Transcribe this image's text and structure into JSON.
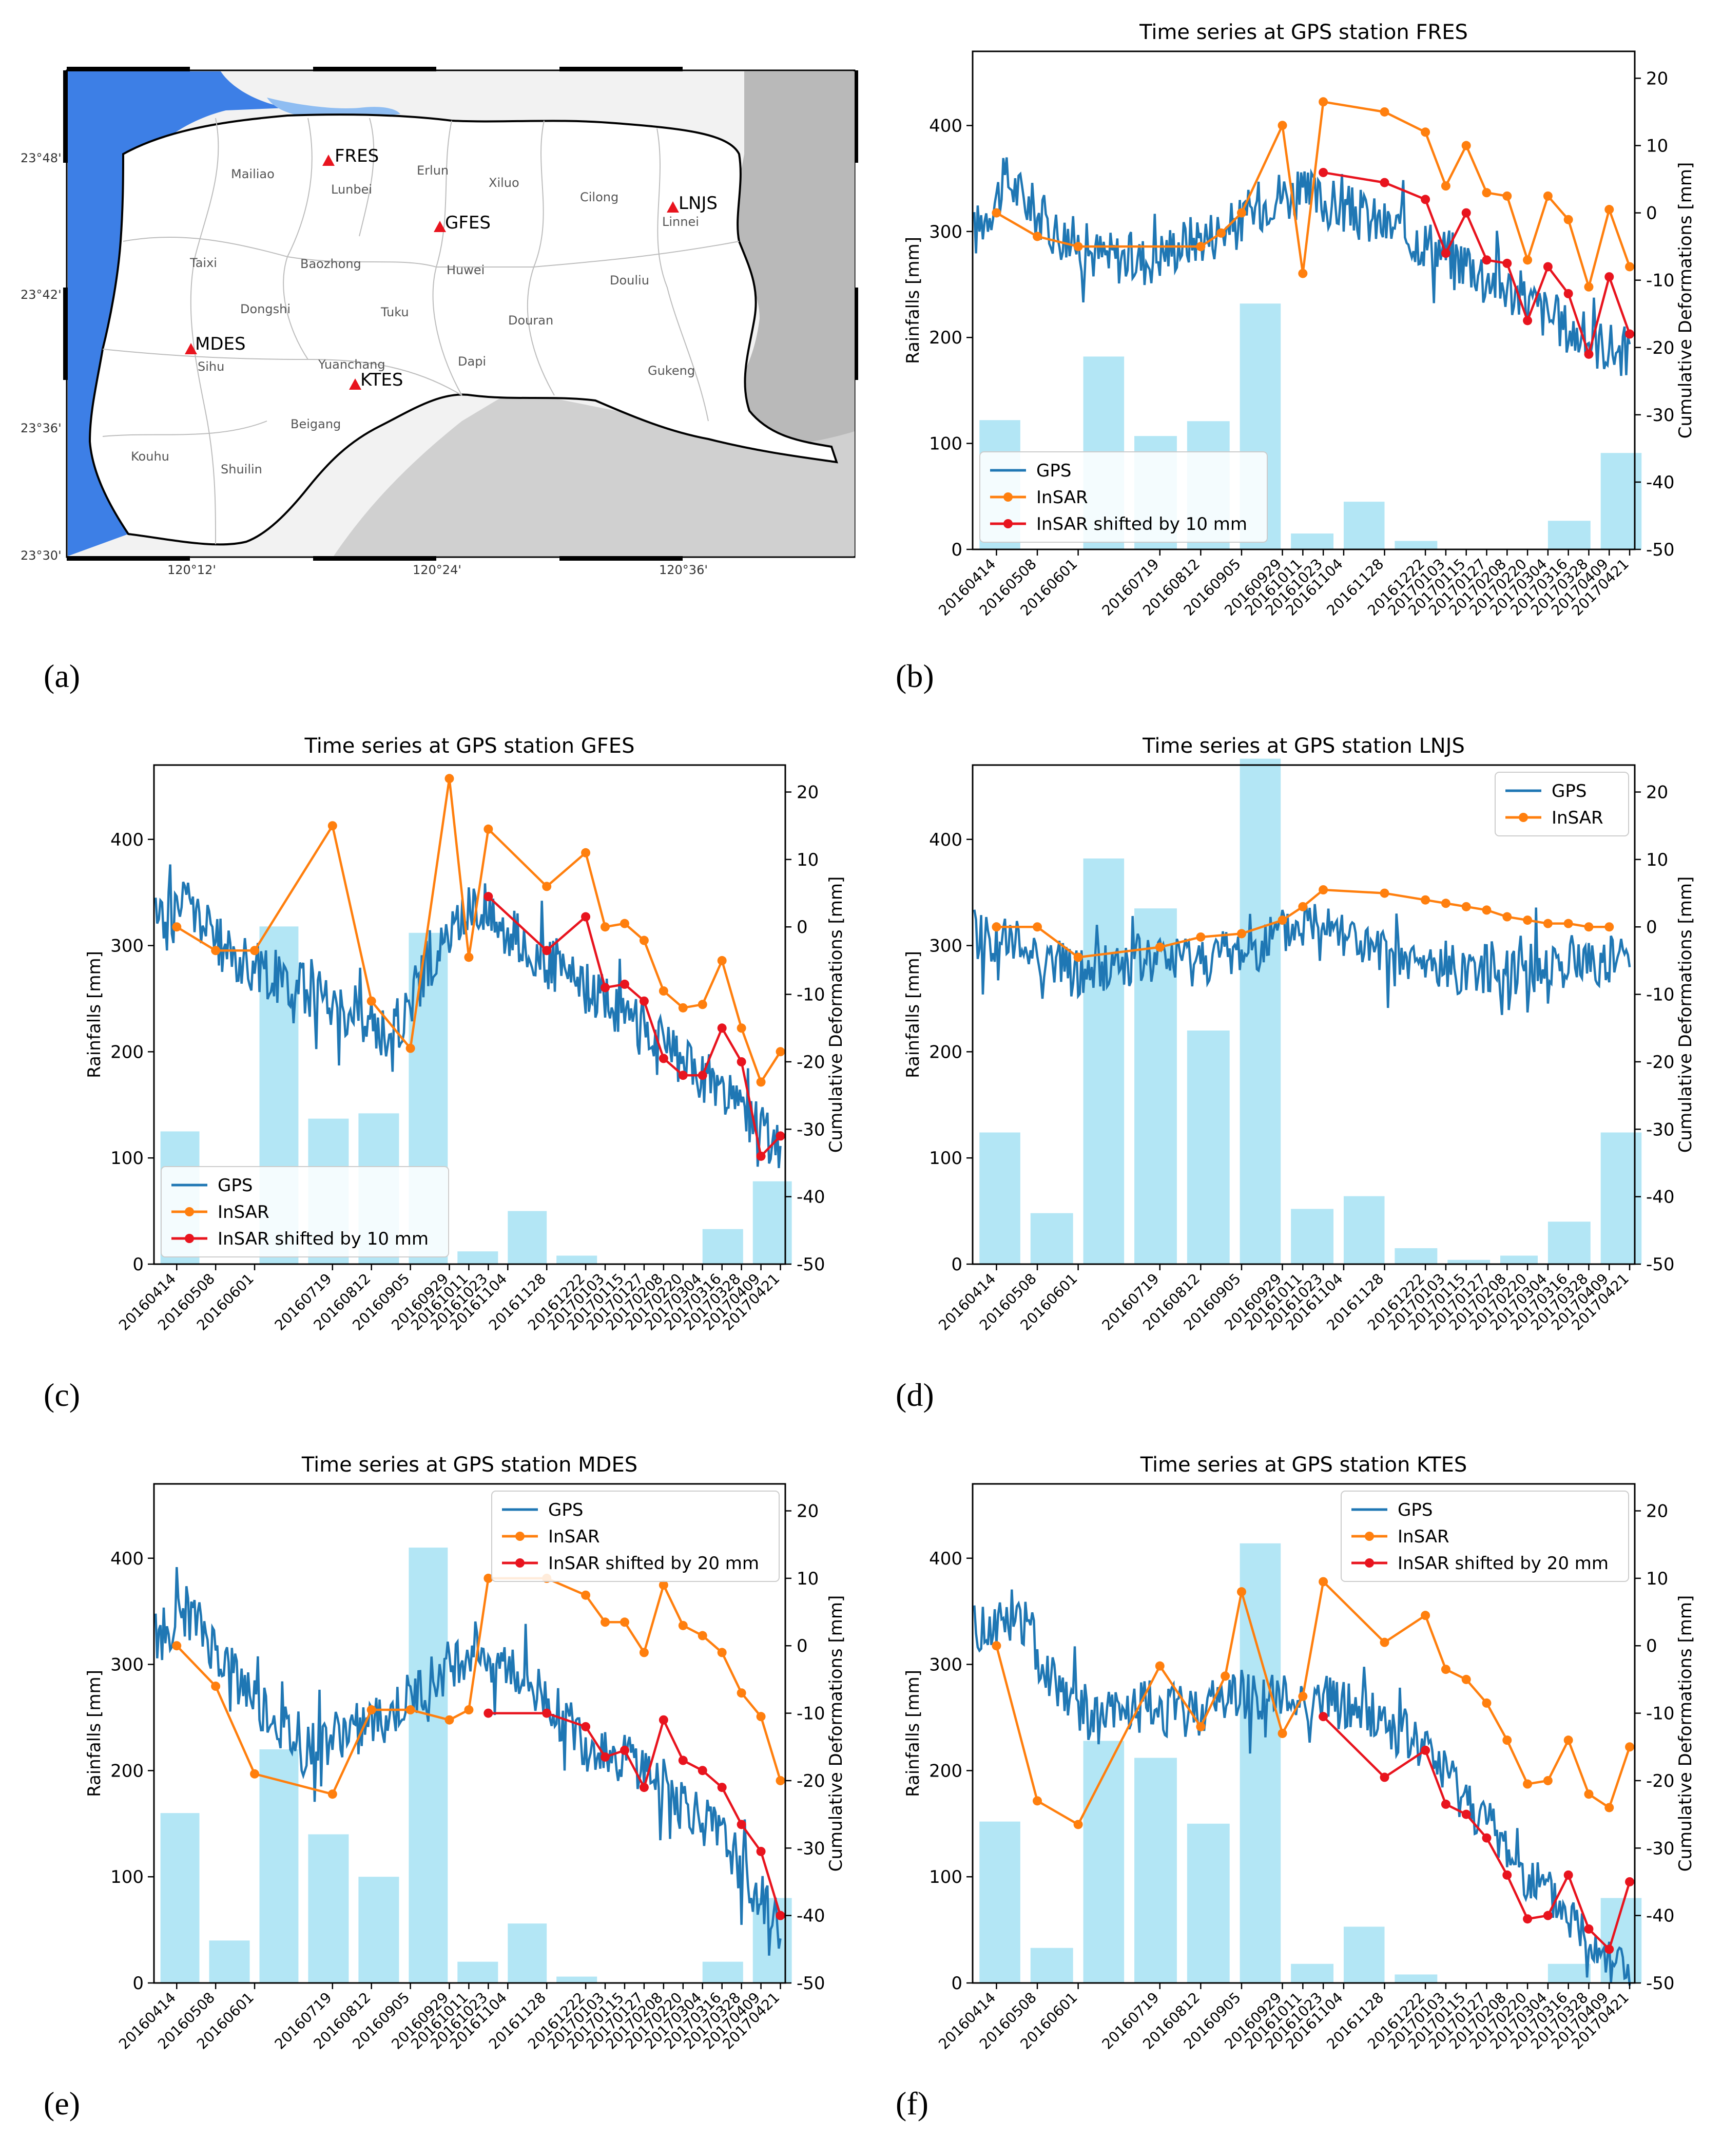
{
  "panel_letters": [
    "(a)",
    "(b)",
    "(c)",
    "(d)",
    "(e)",
    "(f)"
  ],
  "map": {
    "lat_ticks": [
      "23°48'",
      "23°42'",
      "23°36'",
      "23°30'"
    ],
    "lon_ticks": [
      "120°12'",
      "120°24'",
      "120°36'"
    ],
    "townships": [
      "Mailiao",
      "Lunbei",
      "Erlun",
      "Xiluo",
      "Cilong",
      "Linnei",
      "Taixi",
      "Baozhong",
      "Huwei",
      "Douliu",
      "Dongshi",
      "Tuku",
      "Douran",
      "Sihu",
      "Yuanchang",
      "Dapi",
      "Gukeng",
      "Beigang",
      "Kouhu",
      "Shuilin"
    ],
    "stations": [
      "FRES",
      "GFES",
      "LNJS",
      "MDES",
      "KTES"
    ],
    "colors": {
      "sea": "#3d7fe6",
      "land": "#f2f2f2",
      "relief": "#a8a8a8",
      "station": "#e8141e"
    }
  },
  "chart_data": [
    {
      "type": "bar+line",
      "title": "Time series at GPS station FRES",
      "ylabel": "Rainfalls [mm]",
      "y2label": "Cumulative Deformations [mm]",
      "ylim": [
        0,
        470
      ],
      "y2lim": [
        -50,
        24
      ],
      "yticks": [
        0,
        100,
        200,
        300,
        400
      ],
      "y2ticks": [
        -50,
        -40,
        -30,
        -20,
        -10,
        0,
        10,
        20
      ],
      "x_range": [
        "2016-03-31",
        "2017-04-24"
      ],
      "dates": [
        "20160414",
        "20160508",
        "20160601",
        "20160719",
        "20160812",
        "20160905",
        "20160929",
        "20161011",
        "20161023",
        "20161104",
        "20161128",
        "20161222",
        "20170103",
        "20170115",
        "20170127",
        "20170208",
        "20170220",
        "20170304",
        "20170316",
        "20170328",
        "20170409",
        "20170421"
      ],
      "rain_months": [
        "2016-04",
        "2016-05",
        "2016-06",
        "2016-07",
        "2016-08",
        "2016-09",
        "2016-10",
        "2016-11",
        "2016-12",
        "2017-01",
        "2017-02",
        "2017-03",
        "2017-04"
      ],
      "rain": [
        122,
        0,
        182,
        107,
        121,
        232,
        15,
        45,
        8,
        0,
        0,
        27,
        91
      ],
      "legend": [
        "GPS",
        "InSAR",
        "InSAR shifted by 10 mm"
      ],
      "legend_loc": "lower-left",
      "gps_anchors": [
        [
          "2016-04-01",
          -3
        ],
        [
          "2016-04-20",
          5
        ],
        [
          "2016-05-15",
          -2
        ],
        [
          "2016-06-10",
          -6
        ],
        [
          "2016-07-10",
          -7
        ],
        [
          "2016-08-05",
          -4
        ],
        [
          "2016-09-01",
          -2
        ],
        [
          "2016-09-25",
          3
        ],
        [
          "2016-10-20",
          2
        ],
        [
          "2016-11-20",
          -1
        ],
        [
          "2016-12-20",
          -4
        ],
        [
          "2017-01-20",
          -8
        ],
        [
          "2017-02-20",
          -13
        ],
        [
          "2017-03-20",
          -18
        ],
        [
          "2017-04-21",
          -21
        ]
      ],
      "gps_noise": 4,
      "insar": [
        0,
        -3.5,
        -5,
        -5,
        -3,
        0,
        13,
        -9,
        16.5,
        15,
        12,
        4,
        10,
        3,
        2.5,
        -7,
        2.5,
        -1,
        -11,
        0.5,
        -8
      ],
      "insar_dates_idx": [
        0,
        1,
        2,
        4,
        4.5,
        5,
        6,
        7,
        8,
        10,
        11,
        12,
        13,
        14,
        15,
        16,
        17,
        18,
        19,
        20,
        21
      ],
      "shifted": [
        6,
        4.5,
        2,
        -6,
        0,
        -7,
        -7.5,
        -16,
        -8,
        -12,
        -21,
        -9.5,
        -18
      ],
      "shifted_from_idx": 8
    },
    {
      "type": "bar+line",
      "title": "Time series at GPS station GFES",
      "ylabel": "Rainfalls [mm]",
      "y2label": "Cumulative Deformations [mm]",
      "ylim": [
        0,
        470
      ],
      "y2lim": [
        -50,
        24
      ],
      "yticks": [
        0,
        100,
        200,
        300,
        400
      ],
      "y2ticks": [
        -50,
        -40,
        -30,
        -20,
        -10,
        0,
        10,
        20
      ],
      "x_range": [
        "2016-03-31",
        "2017-04-24"
      ],
      "dates": [
        "20160414",
        "20160508",
        "20160601",
        "20160719",
        "20160812",
        "20160905",
        "20160929",
        "20161011",
        "20161023",
        "20161104",
        "20161128",
        "20161222",
        "20170103",
        "20170115",
        "20170127",
        "20170208",
        "20170220",
        "20170304",
        "20170316",
        "20170328",
        "20170409",
        "20170421"
      ],
      "rain_months": [
        "2016-04",
        "2016-05",
        "2016-06",
        "2016-07",
        "2016-08",
        "2016-09",
        "2016-10",
        "2016-11",
        "2016-12",
        "2017-01",
        "2017-02",
        "2017-03",
        "2017-04"
      ],
      "rain": [
        125,
        0,
        318,
        137,
        142,
        312,
        12,
        50,
        8,
        0,
        0,
        33,
        78
      ],
      "legend": [
        "GPS",
        "InSAR",
        "InSAR shifted by 10 mm"
      ],
      "legend_loc": "lower-left",
      "gps_anchors": [
        [
          "2016-04-01",
          1
        ],
        [
          "2016-04-20",
          4
        ],
        [
          "2016-05-15",
          -4
        ],
        [
          "2016-06-10",
          -7
        ],
        [
          "2016-07-10",
          -10
        ],
        [
          "2016-08-05",
          -14
        ],
        [
          "2016-08-25",
          -16
        ],
        [
          "2016-09-15",
          -6
        ],
        [
          "2016-10-15",
          4
        ],
        [
          "2016-11-20",
          -4
        ],
        [
          "2016-12-20",
          -9
        ],
        [
          "2017-01-20",
          -13
        ],
        [
          "2017-02-20",
          -20
        ],
        [
          "2017-03-20",
          -25
        ],
        [
          "2017-04-21",
          -33
        ]
      ],
      "gps_noise": 4,
      "insar": [
        0,
        -3.5,
        -3.5,
        15,
        -11,
        -18,
        22,
        -4.5,
        14.5,
        6,
        11,
        0,
        0.5,
        -2,
        -9.5,
        -12,
        -11.5,
        -5,
        -15,
        -23,
        -18.5
      ],
      "insar_dates_idx": [
        0,
        1,
        2,
        3,
        4,
        5,
        6,
        7,
        8,
        10,
        11,
        12,
        13,
        14,
        15,
        16,
        17,
        18,
        19,
        20,
        21
      ],
      "shifted": [
        4.5,
        -3.5,
        1.5,
        -9,
        -8.5,
        -11,
        -19.5,
        -22,
        -22,
        -15,
        -20,
        -34,
        -31
      ],
      "shifted_from_idx": 8
    },
    {
      "type": "bar+line",
      "title": "Time series at GPS station LNJS",
      "ylabel": "Rainfalls [mm]",
      "y2label": "Cumulative Deformations [mm]",
      "ylim": [
        0,
        470
      ],
      "y2lim": [
        -50,
        24
      ],
      "yticks": [
        0,
        100,
        200,
        300,
        400
      ],
      "y2ticks": [
        -50,
        -40,
        -30,
        -20,
        -10,
        0,
        10,
        20
      ],
      "x_range": [
        "2016-03-31",
        "2017-04-24"
      ],
      "dates": [
        "20160414",
        "20160508",
        "20160601",
        "20160719",
        "20160812",
        "20160905",
        "20160929",
        "20161011",
        "20161023",
        "20161104",
        "20161128",
        "20161222",
        "20170103",
        "20170115",
        "20170127",
        "20170208",
        "20170220",
        "20170304",
        "20170316",
        "20170328",
        "20170409",
        "20170421"
      ],
      "rain_months": [
        "2016-04",
        "2016-05",
        "2016-06",
        "2016-07",
        "2016-08",
        "2016-09",
        "2016-10",
        "2016-11",
        "2016-12",
        "2017-01",
        "2017-02",
        "2017-03",
        "2017-04"
      ],
      "rain": [
        124,
        48,
        382,
        335,
        220,
        476,
        52,
        64,
        15,
        4,
        8,
        40,
        124
      ],
      "legend": [
        "GPS",
        "InSAR"
      ],
      "legend_loc": "upper-right",
      "gps_anchors": [
        [
          "2016-04-01",
          -1
        ],
        [
          "2016-05-01",
          -3
        ],
        [
          "2016-06-01",
          -7
        ],
        [
          "2016-07-01",
          -5
        ],
        [
          "2016-08-01",
          -5
        ],
        [
          "2016-09-01",
          -4
        ],
        [
          "2016-10-01",
          -1
        ],
        [
          "2016-10-25",
          2
        ],
        [
          "2016-11-20",
          -4
        ],
        [
          "2016-12-20",
          -6
        ],
        [
          "2017-01-20",
          -6
        ],
        [
          "2017-02-20",
          -6
        ],
        [
          "2017-03-20",
          -5
        ],
        [
          "2017-04-21",
          -5
        ]
      ],
      "gps_noise": 4,
      "insar": [
        0,
        0,
        -4.5,
        -3,
        -1.5,
        -1,
        1,
        3,
        5.5,
        5,
        4,
        3.5,
        3,
        2.5,
        1.5,
        1,
        0.5,
        0.5,
        0,
        0
      ],
      "insar_dates_idx": [
        0,
        1,
        2,
        3,
        4,
        5,
        6,
        7,
        8,
        10,
        11,
        12,
        13,
        14,
        15,
        16,
        17,
        18,
        19,
        20
      ],
      "shifted": [],
      "shifted_from_idx": 0
    },
    {
      "type": "bar+line",
      "title": "Time series at GPS station MDES",
      "ylabel": "Rainfalls [mm]",
      "y2label": "Cumulative Deformations [mm]",
      "ylim": [
        0,
        470
      ],
      "y2lim": [
        -50,
        24
      ],
      "yticks": [
        0,
        100,
        200,
        300,
        400
      ],
      "y2ticks": [
        -50,
        -40,
        -30,
        -20,
        -10,
        0,
        10,
        20
      ],
      "x_range": [
        "2016-03-31",
        "2017-04-24"
      ],
      "dates": [
        "20160414",
        "20160508",
        "20160601",
        "20160719",
        "20160812",
        "20160905",
        "20160929",
        "20161011",
        "20161023",
        "20161104",
        "20161128",
        "20161222",
        "20170103",
        "20170115",
        "20170127",
        "20170208",
        "20170220",
        "20170304",
        "20170316",
        "20170328",
        "20170409",
        "20170421"
      ],
      "rain_months": [
        "2016-04",
        "2016-05",
        "2016-06",
        "2016-07",
        "2016-08",
        "2016-09",
        "2016-10",
        "2016-11",
        "2016-12",
        "2017-01",
        "2017-02",
        "2017-03",
        "2017-04"
      ],
      "rain": [
        160,
        40,
        220,
        140,
        100,
        410,
        20,
        56,
        6,
        0,
        0,
        20,
        80
      ],
      "legend": [
        "GPS",
        "InSAR",
        "InSAR shifted by 20 mm"
      ],
      "legend_loc": "upper-right",
      "gps_anchors": [
        [
          "2016-04-01",
          1
        ],
        [
          "2016-04-20",
          5
        ],
        [
          "2016-05-15",
          -3
        ],
        [
          "2016-06-10",
          -10
        ],
        [
          "2016-07-01",
          -16
        ],
        [
          "2016-07-25",
          -13
        ],
        [
          "2016-08-20",
          -11
        ],
        [
          "2016-09-15",
          -6
        ],
        [
          "2016-10-15",
          0
        ],
        [
          "2016-11-20",
          -6
        ],
        [
          "2016-12-20",
          -14
        ],
        [
          "2017-01-20",
          -17
        ],
        [
          "2017-02-20",
          -23
        ],
        [
          "2017-03-20",
          -30
        ],
        [
          "2017-04-10",
          -38
        ],
        [
          "2017-04-21",
          -42
        ]
      ],
      "gps_noise": 4,
      "insar": [
        0,
        -6,
        -19,
        -22,
        -9.5,
        -9.5,
        -11,
        -9.5,
        10,
        10,
        7.5,
        3.5,
        3.5,
        -1,
        9,
        3,
        1.5,
        -1,
        -7,
        -10.5,
        -20
      ],
      "insar_dates_idx": [
        0,
        1,
        2,
        3,
        4,
        5,
        6,
        7,
        8,
        10,
        11,
        12,
        13,
        14,
        15,
        16,
        17,
        18,
        19,
        20,
        21
      ],
      "shifted": [
        -10,
        -10,
        -12,
        -16.5,
        -15.5,
        -21,
        -11,
        -17,
        -18.5,
        -21,
        -26.5,
        -30.5,
        -40
      ],
      "shifted_from_idx": 8
    },
    {
      "type": "bar+line",
      "title": "Time series at GPS station KTES",
      "ylabel": "Rainfalls [mm]",
      "y2label": "Cumulative Deformations [mm]",
      "ylim": [
        0,
        470
      ],
      "y2lim": [
        -50,
        24
      ],
      "yticks": [
        0,
        100,
        200,
        300,
        400
      ],
      "y2ticks": [
        -50,
        -40,
        -30,
        -20,
        -10,
        0,
        10,
        20
      ],
      "x_range": [
        "2016-03-31",
        "2017-04-24"
      ],
      "dates": [
        "20160414",
        "20160508",
        "20160601",
        "20160719",
        "20160812",
        "20160905",
        "20160929",
        "20161011",
        "20161023",
        "20161104",
        "20161128",
        "20161222",
        "20170103",
        "20170115",
        "20170127",
        "20170208",
        "20170220",
        "20170304",
        "20170316",
        "20170328",
        "20170409",
        "20170421"
      ],
      "rain_months": [
        "2016-04",
        "2016-05",
        "2016-06",
        "2016-07",
        "2016-08",
        "2016-09",
        "2016-10",
        "2016-11",
        "2016-12",
        "2017-01",
        "2017-02",
        "2017-03",
        "2017-04"
      ],
      "rain": [
        152,
        33,
        228,
        212,
        150,
        414,
        18,
        53,
        8,
        0,
        0,
        18,
        80
      ],
      "legend": [
        "GPS",
        "InSAR",
        "InSAR shifted by 20 mm"
      ],
      "legend_loc": "upper-right",
      "gps_anchors": [
        [
          "2016-04-01",
          2
        ],
        [
          "2016-04-25",
          5
        ],
        [
          "2016-05-15",
          -4
        ],
        [
          "2016-06-10",
          -11
        ],
        [
          "2016-07-10",
          -9
        ],
        [
          "2016-08-05",
          -10
        ],
        [
          "2016-09-01",
          -7
        ],
        [
          "2016-10-01",
          -8
        ],
        [
          "2016-10-25",
          -8
        ],
        [
          "2016-11-20",
          -10
        ],
        [
          "2016-12-20",
          -15
        ],
        [
          "2017-01-20",
          -24
        ],
        [
          "2017-02-20",
          -34
        ],
        [
          "2017-03-20",
          -41
        ],
        [
          "2017-04-10",
          -46
        ],
        [
          "2017-04-21",
          -48
        ]
      ],
      "gps_noise": 4,
      "insar": [
        0,
        -23,
        -26.5,
        -3,
        -12,
        -4.5,
        8,
        -13,
        -7.5,
        9.5,
        0.5,
        4.5,
        -3.5,
        -5,
        -8.5,
        -14,
        -20.5,
        -20,
        -14,
        -22,
        -24,
        -15
      ],
      "insar_dates_idx": [
        0,
        1,
        2,
        3,
        4,
        4.6,
        5,
        6,
        7,
        8,
        10,
        11,
        12,
        13,
        14,
        15,
        16,
        17,
        18,
        19,
        20,
        21
      ],
      "shifted": [
        -10.5,
        -19.5,
        -15.5,
        -23.5,
        -25,
        -28.5,
        -34,
        -40.5,
        -40,
        -34,
        -42,
        -45,
        -35
      ],
      "shifted_from_idx": 8
    }
  ]
}
